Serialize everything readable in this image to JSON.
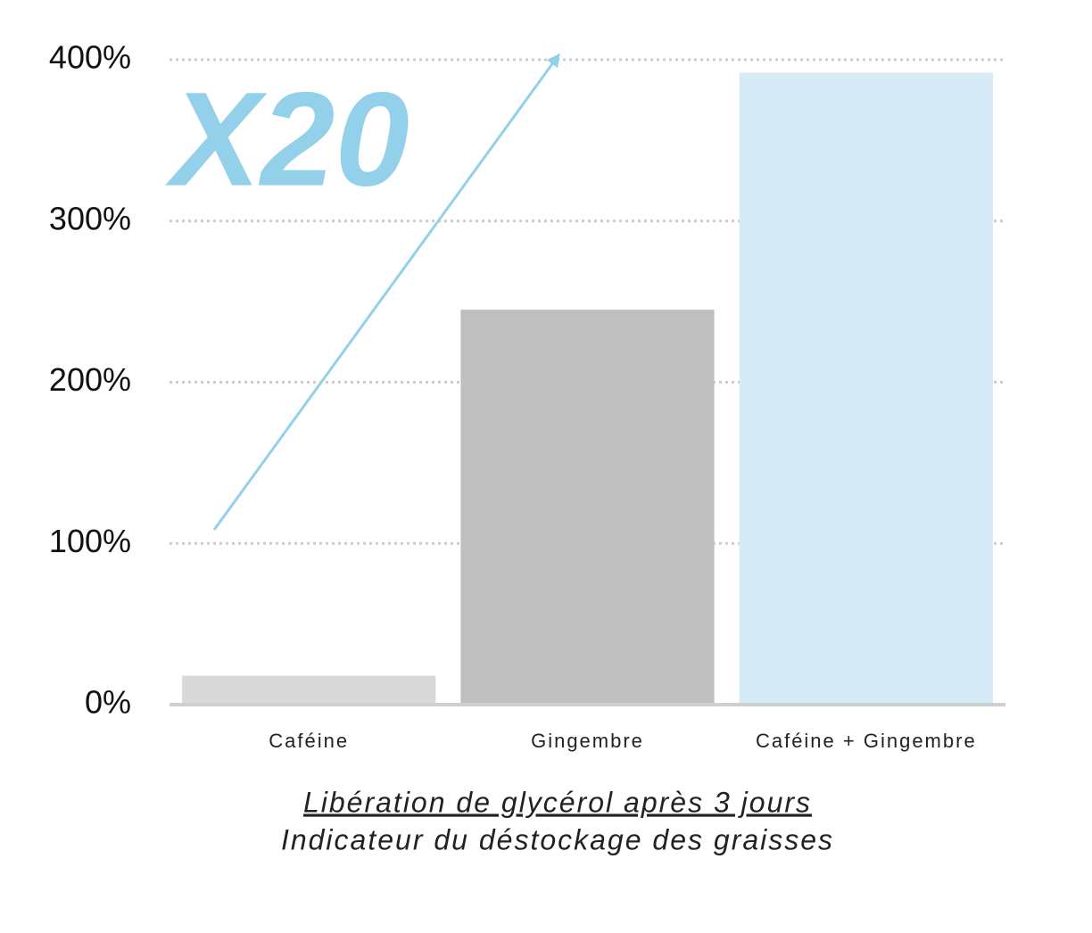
{
  "chart_data": {
    "type": "bar",
    "title": "Libération de glycérol après 3 jours",
    "subtitle": "Indicateur du déstockage des graisses",
    "annotation": "X20",
    "categories": [
      "Caféine",
      "Gingembre",
      "Caféine + Gingembre"
    ],
    "values": [
      18,
      245,
      392
    ],
    "colors": [
      "#d9d9d9",
      "#bfbfbf",
      "#d5ecf6"
    ],
    "ylim": [
      0,
      400
    ],
    "yticks": [
      {
        "value": 0,
        "label": "0%"
      },
      {
        "value": 100,
        "label": "100%"
      },
      {
        "value": 200,
        "label": "200%"
      },
      {
        "value": 300,
        "label": "300%"
      },
      {
        "value": 400,
        "label": "400%"
      }
    ],
    "grid": true
  }
}
